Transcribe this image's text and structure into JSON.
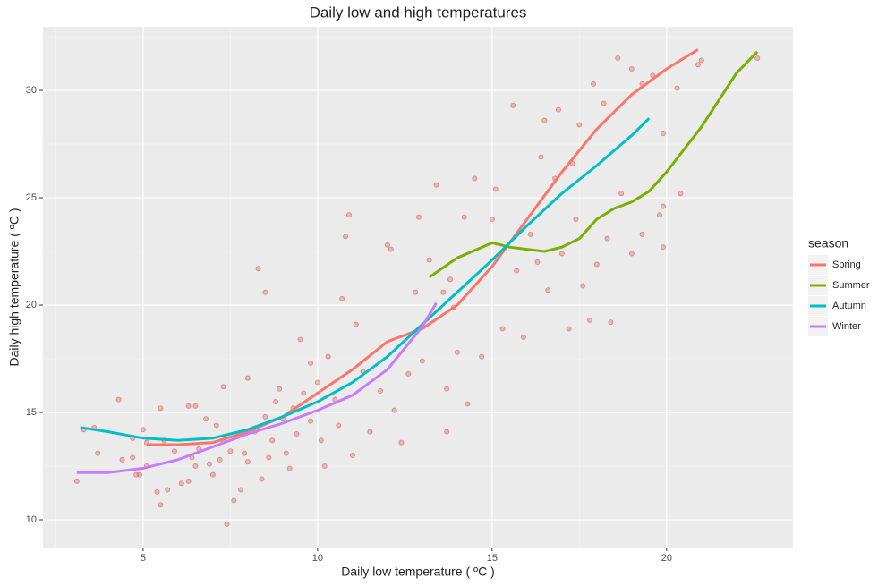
{
  "chart_data": {
    "type": "scatter",
    "title": "Daily low and high temperatures",
    "x_label": "Daily low temperature ( ºC )",
    "y_label": "Daily high temperature ( ºC )",
    "legend_title": "season",
    "legend": "right",
    "grid": true,
    "xlim": [
      2.13,
      23.62
    ],
    "xticks": [
      5,
      10,
      15,
      20
    ],
    "ylim": [
      8.71,
      32.96
    ],
    "yticks": [
      10,
      15,
      20,
      25,
      30
    ],
    "points": {
      "color": "#d9534f",
      "x": [
        3.1,
        3.3,
        3.6,
        3.7,
        4.3,
        4.4,
        4.7,
        4.7,
        4.8,
        4.9,
        5.0,
        5.1,
        5.1,
        5.4,
        5.5,
        5.5,
        5.6,
        5.7,
        5.9,
        6.1,
        6.3,
        6.3,
        6.4,
        6.5,
        6.5,
        6.6,
        6.8,
        6.9,
        7.0,
        7.1,
        7.2,
        7.3,
        7.3,
        7.4,
        7.5,
        7.6,
        7.8,
        7.9,
        8.0,
        8.0,
        8.2,
        8.3,
        8.4,
        8.5,
        8.5,
        8.6,
        8.7,
        8.8,
        8.9,
        9.0,
        9.1,
        9.2,
        9.3,
        9.4,
        9.5,
        9.6,
        9.8,
        9.8,
        10.0,
        10.1,
        10.2,
        10.3,
        10.5,
        10.6,
        10.7,
        10.8,
        10.9,
        11.0,
        11.1,
        11.3,
        11.5,
        11.8,
        12.0,
        12.1,
        12.2,
        12.4,
        12.6,
        12.8,
        12.9,
        13.0,
        13.2,
        13.4,
        13.6,
        13.7,
        13.7,
        13.8,
        13.9,
        14.0,
        14.2,
        14.3,
        14.5,
        14.7,
        15.0,
        15.1,
        15.3,
        15.6,
        15.7,
        15.9,
        16.1,
        16.3,
        16.4,
        16.5,
        16.6,
        16.8,
        16.9,
        17.0,
        17.2,
        17.3,
        17.4,
        17.5,
        17.6,
        17.8,
        17.9,
        18.0,
        18.2,
        18.3,
        18.4,
        18.6,
        18.7,
        19.0,
        19.0,
        19.3,
        19.3,
        19.6,
        19.8,
        19.9,
        19.9,
        19.9,
        20.3,
        20.4,
        20.9,
        21.0,
        22.6
      ],
      "y": [
        11.8,
        14.2,
        14.3,
        13.1,
        15.6,
        12.8,
        13.8,
        12.9,
        12.1,
        12.1,
        14.2,
        13.6,
        12.5,
        11.3,
        15.2,
        10.7,
        13.7,
        11.4,
        13.2,
        11.7,
        11.8,
        15.3,
        12.9,
        15.3,
        12.5,
        13.3,
        14.7,
        12.6,
        12.1,
        14.4,
        12.8,
        16.2,
        13.7,
        9.8,
        13.2,
        10.9,
        11.4,
        13.1,
        12.7,
        16.6,
        14.1,
        21.7,
        11.9,
        14.8,
        20.6,
        12.9,
        13.7,
        15.5,
        16.1,
        14.7,
        13.1,
        12.4,
        15.2,
        14.0,
        18.4,
        15.9,
        14.6,
        17.3,
        16.4,
        13.7,
        12.5,
        17.6,
        15.6,
        14.4,
        20.3,
        23.2,
        24.2,
        13.0,
        19.1,
        16.9,
        14.1,
        16.0,
        22.8,
        22.6,
        15.1,
        13.6,
        16.8,
        20.6,
        24.1,
        17.4,
        22.1,
        25.6,
        20.6,
        16.1,
        14.1,
        21.2,
        19.9,
        17.8,
        24.1,
        15.4,
        25.9,
        17.6,
        24.0,
        25.4,
        18.9,
        29.3,
        21.6,
        18.5,
        23.3,
        22.0,
        26.9,
        28.6,
        20.7,
        25.9,
        29.1,
        22.4,
        18.9,
        26.6,
        24.0,
        28.4,
        20.9,
        19.3,
        30.3,
        21.9,
        29.4,
        23.1,
        19.2,
        31.5,
        25.2,
        31.0,
        22.4,
        30.3,
        23.3,
        30.7,
        24.2,
        28.0,
        24.6,
        22.7,
        30.1,
        25.2,
        31.2,
        31.4,
        31.5
      ]
    },
    "series": [
      {
        "name": "Spring",
        "color": "#f8766d",
        "x": [
          5.1,
          6,
          7,
          8,
          9,
          10,
          11,
          12,
          13,
          14,
          15,
          16,
          17,
          18,
          19,
          20,
          20.9
        ],
        "values": [
          13.5,
          13.5,
          13.6,
          14.1,
          14.8,
          15.9,
          17.0,
          18.3,
          18.9,
          20.0,
          21.8,
          24.0,
          26.2,
          28.2,
          29.8,
          31.0,
          31.9
        ]
      },
      {
        "name": "Summer",
        "color": "#7cae00",
        "x": [
          13.2,
          14,
          15,
          15.5,
          16,
          16.5,
          17,
          17.5,
          18,
          18.5,
          19,
          19.5,
          20,
          21,
          22,
          22.6
        ],
        "values": [
          21.3,
          22.2,
          22.9,
          22.7,
          22.6,
          22.5,
          22.7,
          23.1,
          24.0,
          24.5,
          24.8,
          25.3,
          26.2,
          28.3,
          30.8,
          31.8
        ]
      },
      {
        "name": "Autumn",
        "color": "#00bfc4",
        "x": [
          3.2,
          4,
          5,
          6,
          7,
          8,
          9,
          10,
          11,
          12,
          13,
          14,
          15,
          16,
          17,
          18,
          19,
          19.5
        ],
        "values": [
          14.3,
          14.1,
          13.8,
          13.7,
          13.8,
          14.2,
          14.8,
          15.5,
          16.4,
          17.6,
          19.1,
          20.6,
          22.1,
          23.7,
          25.2,
          26.5,
          27.9,
          28.7
        ]
      },
      {
        "name": "Winter",
        "color": "#c77cff",
        "x": [
          3.1,
          4,
          5,
          6,
          7,
          8,
          9,
          10,
          11,
          12,
          13,
          13.4
        ],
        "values": [
          12.2,
          12.2,
          12.4,
          12.8,
          13.4,
          14.0,
          14.5,
          15.1,
          15.8,
          17.0,
          19.0,
          20.1
        ]
      }
    ]
  }
}
